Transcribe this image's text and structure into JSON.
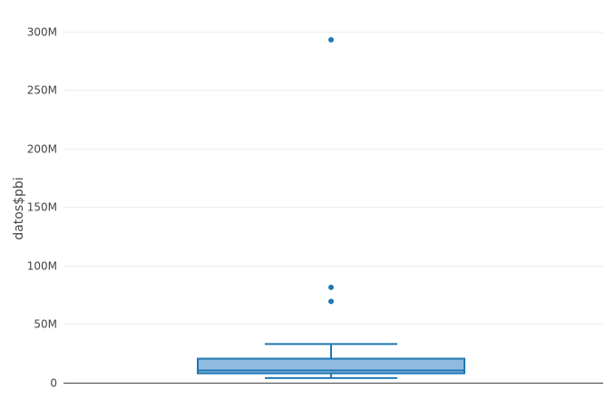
{
  "chart_data": {
    "type": "box",
    "ylabel": "datos$pbi",
    "xlabel": "",
    "ylim": [
      0,
      310000000
    ],
    "yticks": [
      {
        "value": 0,
        "label": "0"
      },
      {
        "value": 50000000,
        "label": "50M"
      },
      {
        "value": 100000000,
        "label": "100M"
      },
      {
        "value": 150000000,
        "label": "150M"
      },
      {
        "value": 200000000,
        "label": "200M"
      },
      {
        "value": 250000000,
        "label": "250M"
      },
      {
        "value": 300000000,
        "label": "300M"
      }
    ],
    "grid": true,
    "series": [
      {
        "box": {
          "lower_whisker": 4000000,
          "q1": 8000000,
          "median": 10500000,
          "q3": 20500000,
          "upper_whisker": 33000000
        },
        "outliers": [
          69500000,
          81500000,
          293000000
        ],
        "color": "#1f77b4",
        "fill": "#8fbbe0"
      }
    ]
  }
}
